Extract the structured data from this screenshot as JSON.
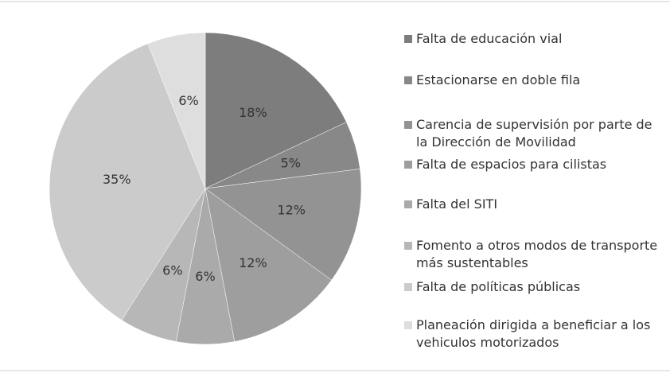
{
  "chart_data": {
    "type": "pie",
    "categories": [
      "Falta de educación vial",
      "Estacionarse en doble fila",
      "Carencia de supervisión por parte de la Dirección de Movilidad",
      "Falta de espacios para cilistas",
      "Falta del SITI",
      "Fomento a otros modos de transporte más sustentables",
      "Falta de políticas públicas",
      "Planeación dirigida a beneficiar a los vehiculos motorizados"
    ],
    "values": [
      18,
      5,
      12,
      12,
      6,
      6,
      35,
      6
    ],
    "value_labels": [
      "18%",
      "5%",
      "12%",
      "12%",
      "6%",
      "6%",
      "35%",
      "6%"
    ],
    "colors": [
      "#7d7d7d",
      "#888888",
      "#939393",
      "#9e9e9e",
      "#aaaaaa",
      "#b7b7b7",
      "#cbcbcb",
      "#dedede"
    ],
    "legend": "right"
  }
}
